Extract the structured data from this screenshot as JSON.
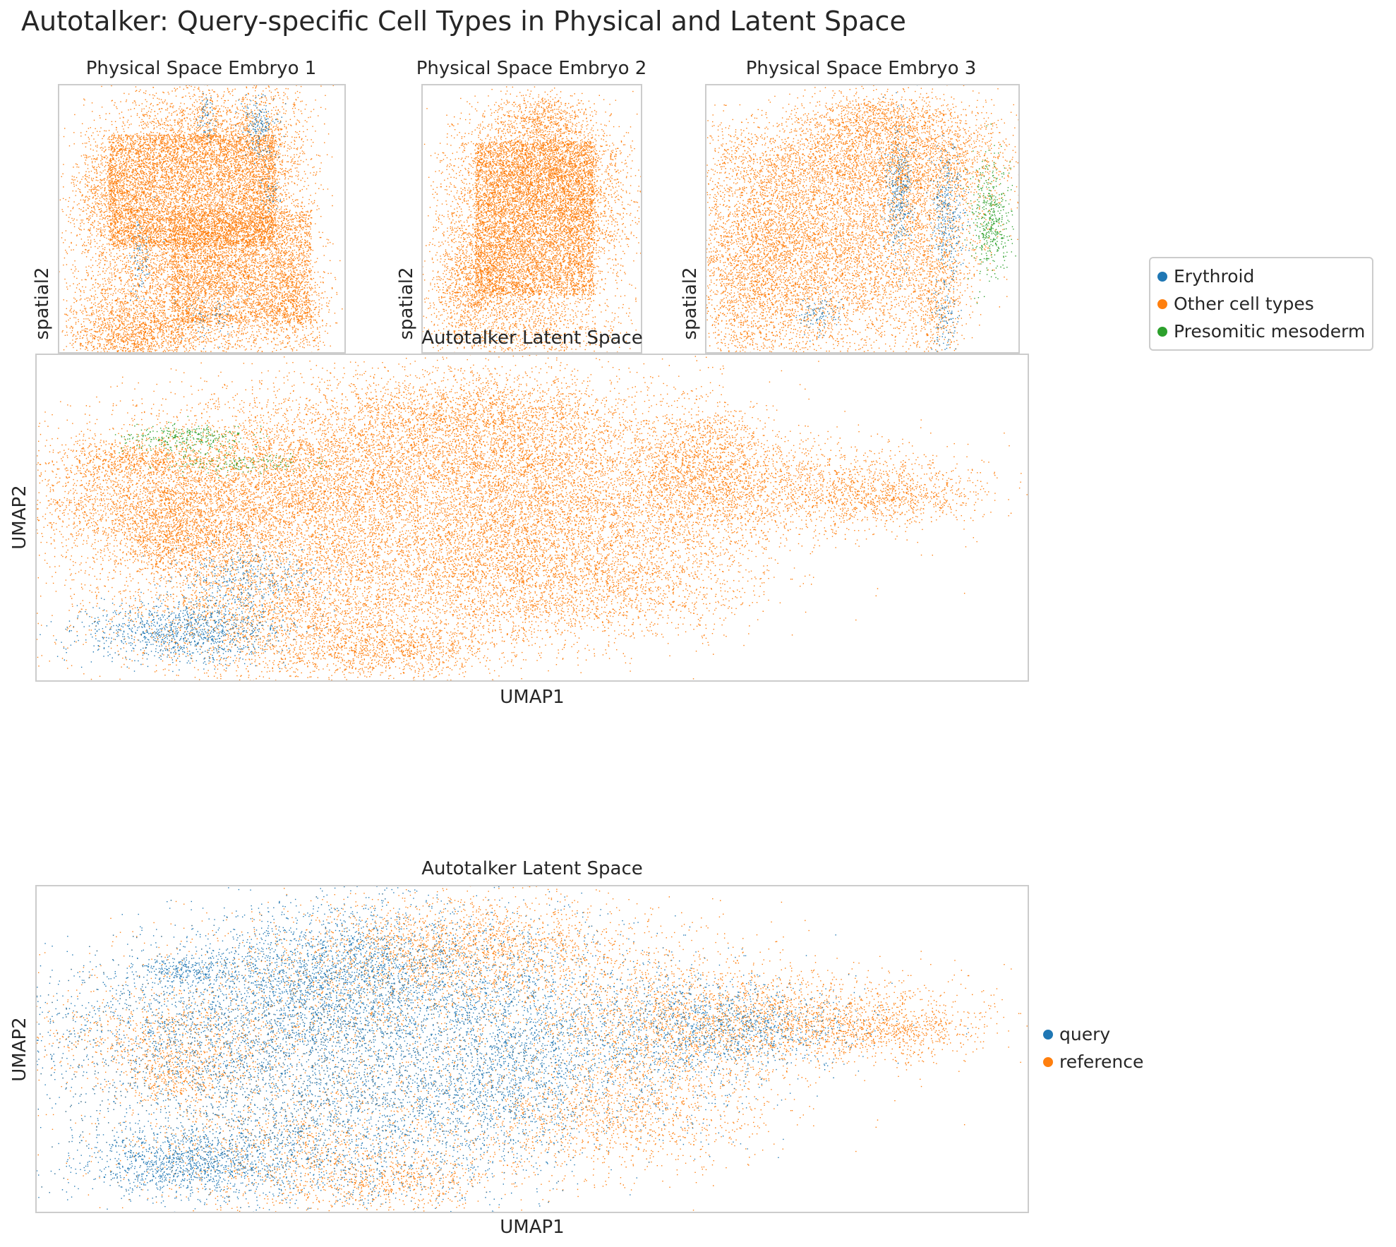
{
  "title": "Autotalker: Query-specific Cell Types in Physical and Latent Space",
  "colors": {
    "blue": "#1f77b4",
    "orange": "#ff7f0e",
    "green": "#2ca02c"
  },
  "cell_type_legend": {
    "items": [
      {
        "label": "Erythroid",
        "color": "#1f77b4"
      },
      {
        "label": "Other cell types",
        "color": "#ff7f0e"
      },
      {
        "label": "Presomitic mesoderm",
        "color": "#2ca02c"
      }
    ]
  },
  "batch_legend": {
    "items": [
      {
        "label": "query",
        "color": "#1f77b4"
      },
      {
        "label": "reference",
        "color": "#ff7f0e"
      }
    ]
  },
  "panels": {
    "embryo1": {
      "title": "Physical Space Embryo 1",
      "ylabel": "spatial2"
    },
    "embryo2": {
      "title": "Physical Space Embryo 2",
      "ylabel": "spatial2"
    },
    "embryo3": {
      "title": "Physical Space Embryo 3",
      "ylabel": "spatial2"
    },
    "latent_celltype": {
      "title": "Autotalker Latent Space",
      "xlabel": "UMAP1",
      "ylabel": "UMAP2"
    },
    "latent_batch": {
      "title": "Autotalker Latent Space",
      "xlabel": "UMAP1",
      "ylabel": "UMAP2"
    }
  },
  "chart_data": [
    {
      "type": "scatter",
      "title": "Physical Space Embryo 1",
      "ylabel": "spatial2",
      "xlabel": "",
      "grid": false,
      "legend": "right",
      "series": [
        {
          "name": "Erythroid",
          "color": "#1f77b4",
          "share": 0.04
        },
        {
          "name": "Other cell types",
          "color": "#ff7f0e",
          "share": 0.96
        }
      ]
    },
    {
      "type": "scatter",
      "title": "Physical Space Embryo 2",
      "ylabel": "spatial2",
      "xlabel": "",
      "grid": false,
      "series": [
        {
          "name": "Other cell types",
          "color": "#ff7f0e",
          "share": 1.0
        }
      ]
    },
    {
      "type": "scatter",
      "title": "Physical Space Embryo 3",
      "ylabel": "spatial2",
      "xlabel": "",
      "grid": false,
      "series": [
        {
          "name": "Erythroid",
          "color": "#1f77b4",
          "share": 0.08
        },
        {
          "name": "Other cell types",
          "color": "#ff7f0e",
          "share": 0.86
        },
        {
          "name": "Presomitic mesoderm",
          "color": "#2ca02c",
          "share": 0.06
        }
      ]
    },
    {
      "type": "scatter",
      "title": "Autotalker Latent Space",
      "xlabel": "UMAP1",
      "ylabel": "UMAP2",
      "grid": false,
      "legend": "right",
      "series": [
        {
          "name": "Erythroid",
          "color": "#1f77b4",
          "share": 0.04
        },
        {
          "name": "Other cell types",
          "color": "#ff7f0e",
          "share": 0.93
        },
        {
          "name": "Presomitic mesoderm",
          "color": "#2ca02c",
          "share": 0.03
        }
      ]
    },
    {
      "type": "scatter",
      "title": "Autotalker Latent Space",
      "xlabel": "UMAP1",
      "ylabel": "UMAP2",
      "grid": false,
      "legend": "right",
      "series": [
        {
          "name": "query",
          "color": "#1f77b4",
          "share": 0.45
        },
        {
          "name": "reference",
          "color": "#ff7f0e",
          "share": 0.55
        }
      ]
    }
  ]
}
